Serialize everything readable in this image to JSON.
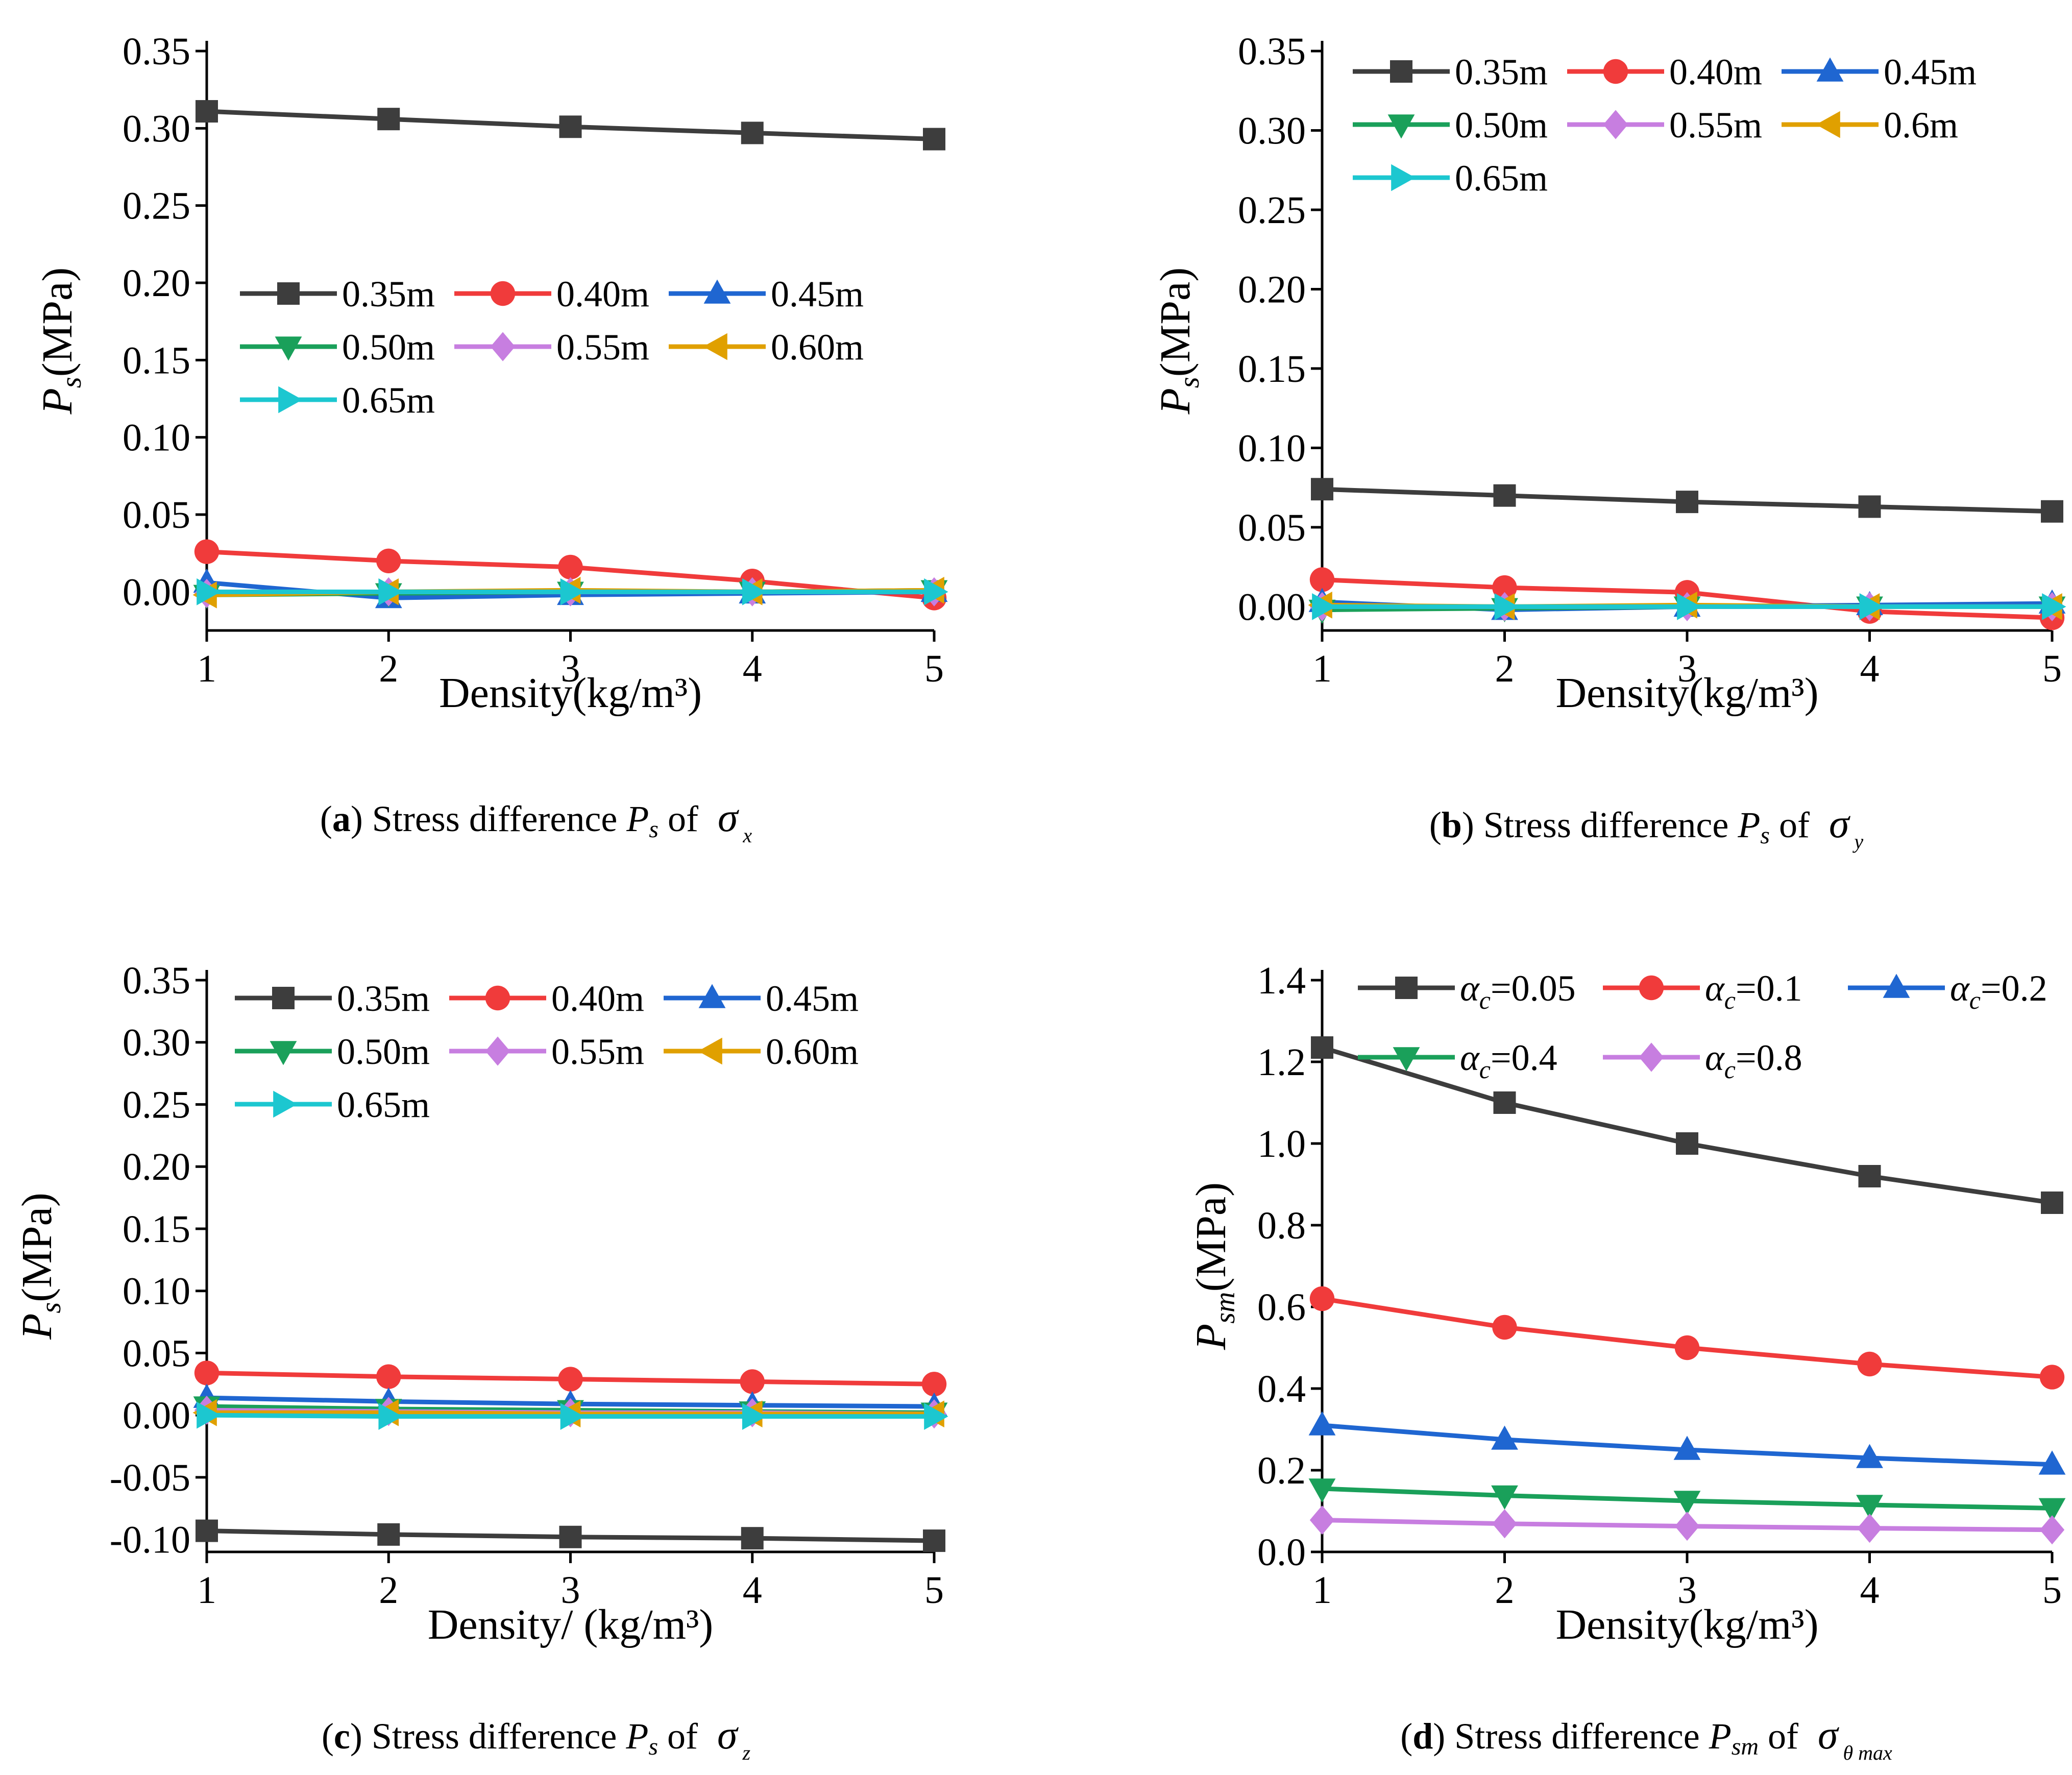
{
  "captions": [
    {
      "letter": "a",
      "text": " Stress difference ",
      "sym": "P",
      "sub": "s",
      "of": " of ",
      "sigma": "σ",
      "sigma_sub": "x"
    },
    {
      "letter": "b",
      "text": " Stress difference ",
      "sym": "P",
      "sub": "s",
      "of": " of ",
      "sigma": "σ",
      "sigma_sub": "y"
    },
    {
      "letter": "c",
      "text": " Stress difference ",
      "sym": "P",
      "sub": "s",
      "of": " of ",
      "sigma": "σ",
      "sigma_sub": "z"
    },
    {
      "letter": "d",
      "text": " Stress difference ",
      "sym": "P",
      "sub": "sm",
      "of": " of ",
      "sigma": "σ",
      "sigma_sub": "θ max"
    }
  ],
  "chart_data": [
    {
      "type": "line",
      "xlabel": "Density(kg/m³)",
      "ylabel": {
        "sym": "P",
        "sub": "s",
        "unit": "(MPa)"
      },
      "x": [
        1,
        2,
        3,
        4,
        5
      ],
      "xticks": [
        "1",
        "2",
        "3",
        "4",
        "5"
      ],
      "ylim": [
        -0.025,
        0.35
      ],
      "yticks": [
        "0.00",
        "0.05",
        "0.10",
        "0.15",
        "0.20",
        "0.25",
        "0.30",
        "0.35"
      ],
      "ytick_values": [
        0,
        0.05,
        0.1,
        0.15,
        0.2,
        0.25,
        0.3,
        0.35
      ],
      "legend_position": "center-left",
      "legend_cols": 3,
      "series": [
        {
          "name": "0.35m",
          "marker": "square",
          "color": "#3d3d3d",
          "values": [
            0.311,
            0.306,
            0.301,
            0.297,
            0.293
          ]
        },
        {
          "name": "0.40m",
          "marker": "circle",
          "color": "#f03b3b",
          "values": [
            0.026,
            0.02,
            0.016,
            0.007,
            -0.004
          ]
        },
        {
          "name": "0.45m",
          "marker": "triangle-up",
          "color": "#1f66d1",
          "values": [
            0.006,
            -0.004,
            -0.002,
            -0.001,
            0.0
          ]
        },
        {
          "name": "0.50m",
          "marker": "triangle-down",
          "color": "#1aa05a",
          "values": [
            -0.002,
            -0.001,
            0.0,
            0.0,
            0.001
          ]
        },
        {
          "name": "0.55m",
          "marker": "diamond",
          "color": "#c77ee0",
          "values": [
            -0.001,
            0.0,
            0.0,
            0.0,
            0.0
          ]
        },
        {
          "name": "0.60m",
          "marker": "triangle-left",
          "color": "#e0a000",
          "values": [
            -0.002,
            0.0,
            0.001,
            0.0,
            0.001
          ]
        },
        {
          "name": "0.65m",
          "marker": "triangle-right",
          "color": "#1cc7d0",
          "values": [
            0.0,
            0.0,
            0.0,
            0.0,
            0.0
          ]
        }
      ]
    },
    {
      "type": "line",
      "xlabel": "Density(kg/m³)",
      "ylabel": {
        "sym": "P",
        "sub": "s",
        "unit": "(MPa)"
      },
      "x": [
        1,
        2,
        3,
        4,
        5
      ],
      "xticks": [
        "1",
        "2",
        "3",
        "4",
        "5"
      ],
      "ylim": [
        -0.015,
        0.35
      ],
      "yticks": [
        "0.00",
        "0.05",
        "0.10",
        "0.15",
        "0.20",
        "0.25",
        "0.30",
        "0.35"
      ],
      "ytick_values": [
        0,
        0.05,
        0.1,
        0.15,
        0.2,
        0.25,
        0.3,
        0.35
      ],
      "legend_position": "top-left",
      "legend_cols": 3,
      "series": [
        {
          "name": "0.35m",
          "marker": "square",
          "color": "#3d3d3d",
          "values": [
            0.074,
            0.07,
            0.066,
            0.063,
            0.06
          ]
        },
        {
          "name": "0.40m",
          "marker": "circle",
          "color": "#f03b3b",
          "values": [
            0.017,
            0.012,
            0.009,
            -0.003,
            -0.007
          ]
        },
        {
          "name": "0.45m",
          "marker": "triangle-up",
          "color": "#1f66d1",
          "values": [
            0.003,
            -0.002,
            0.0,
            0.001,
            0.002
          ]
        },
        {
          "name": "0.50m",
          "marker": "triangle-down",
          "color": "#1aa05a",
          "values": [
            -0.002,
            -0.001,
            0.0,
            0.0,
            0.0
          ]
        },
        {
          "name": "0.55m",
          "marker": "diamond",
          "color": "#c77ee0",
          "values": [
            0.0,
            0.0,
            0.0,
            0.0,
            0.0
          ]
        },
        {
          "name": "0.6m",
          "marker": "triangle-left",
          "color": "#e0a000",
          "values": [
            0.001,
            0.0,
            0.001,
            0.0,
            0.0
          ]
        },
        {
          "name": "0.65m",
          "marker": "triangle-right",
          "color": "#1cc7d0",
          "values": [
            0.0,
            0.0,
            0.0,
            0.0,
            0.0
          ]
        }
      ]
    },
    {
      "type": "line",
      "xlabel": "Density/ (kg/m³)",
      "ylabel": {
        "sym": "P",
        "sub": "s",
        "unit": "(MPa)"
      },
      "x": [
        1,
        2,
        3,
        4,
        5
      ],
      "xticks": [
        "1",
        "2",
        "3",
        "4",
        "5"
      ],
      "ylim": [
        -0.11,
        0.35
      ],
      "yticks": [
        "-0.10",
        "-0.05",
        "0.00",
        "0.05",
        "0.10",
        "0.15",
        "0.20",
        "0.25",
        "0.30",
        "0.35"
      ],
      "ytick_values": [
        -0.1,
        -0.05,
        0,
        0.05,
        0.1,
        0.15,
        0.2,
        0.25,
        0.3,
        0.35
      ],
      "legend_position": "top-left",
      "legend_cols": 3,
      "series": [
        {
          "name": "0.35m",
          "marker": "square",
          "color": "#3d3d3d",
          "values": [
            -0.093,
            -0.096,
            -0.098,
            -0.099,
            -0.101
          ]
        },
        {
          "name": "0.40m",
          "marker": "circle",
          "color": "#f03b3b",
          "values": [
            0.034,
            0.031,
            0.029,
            0.027,
            0.025
          ]
        },
        {
          "name": "0.45m",
          "marker": "triangle-up",
          "color": "#1f66d1",
          "values": [
            0.014,
            0.011,
            0.009,
            0.008,
            0.007
          ]
        },
        {
          "name": "0.50m",
          "marker": "triangle-down",
          "color": "#1aa05a",
          "values": [
            0.007,
            0.005,
            0.004,
            0.003,
            0.002
          ]
        },
        {
          "name": "0.55m",
          "marker": "diamond",
          "color": "#c77ee0",
          "values": [
            0.004,
            0.003,
            0.002,
            0.002,
            0.001
          ]
        },
        {
          "name": "0.60m",
          "marker": "triangle-left",
          "color": "#e0a000",
          "values": [
            0.002,
            0.002,
            0.001,
            0.001,
            0.001
          ]
        },
        {
          "name": "0.65m",
          "marker": "triangle-right",
          "color": "#1cc7d0",
          "values": [
            0.0,
            -0.001,
            -0.001,
            -0.001,
            -0.001
          ]
        }
      ]
    },
    {
      "type": "line",
      "xlabel": "Density(kg/m³)",
      "ylabel": {
        "sym": "P",
        "sub": "sm",
        "unit": "(MPa)"
      },
      "x": [
        1,
        2,
        3,
        4,
        5
      ],
      "xticks": [
        "1",
        "2",
        "3",
        "4",
        "5"
      ],
      "ylim": [
        0,
        1.4
      ],
      "yticks": [
        "0.0",
        "0.2",
        "0.4",
        "0.6",
        "0.8",
        "1.0",
        "1.2",
        "1.4"
      ],
      "ytick_values": [
        0,
        0.2,
        0.4,
        0.6,
        0.8,
        1.0,
        1.2,
        1.4
      ],
      "legend_position": "top-left",
      "legend_cols": 3,
      "series": [
        {
          "name": "αc=0.05",
          "sym": "α",
          "sub": "c",
          "rest": "=0.05",
          "marker": "square",
          "color": "#3d3d3d",
          "values": [
            1.235,
            1.1,
            1.0,
            0.92,
            0.855
          ]
        },
        {
          "name": "αc=0.1",
          "sym": "α",
          "sub": "c",
          "rest": "=0.1",
          "marker": "circle",
          "color": "#f03b3b",
          "values": [
            0.62,
            0.55,
            0.5,
            0.46,
            0.428
          ]
        },
        {
          "name": "αc=0.2",
          "sym": "α",
          "sub": "c",
          "rest": "=0.2",
          "marker": "triangle-up",
          "color": "#1f66d1",
          "values": [
            0.31,
            0.275,
            0.25,
            0.23,
            0.214
          ]
        },
        {
          "name": "αc=0.4",
          "sym": "α",
          "sub": "c",
          "rest": "=0.4",
          "marker": "triangle-down",
          "color": "#1aa05a",
          "values": [
            0.155,
            0.138,
            0.125,
            0.115,
            0.107
          ]
        },
        {
          "name": "αc=0.8",
          "sym": "α",
          "sub": "c",
          "rest": "=0.8",
          "marker": "diamond",
          "color": "#c77ee0",
          "values": [
            0.078,
            0.069,
            0.063,
            0.058,
            0.054
          ]
        }
      ]
    }
  ]
}
